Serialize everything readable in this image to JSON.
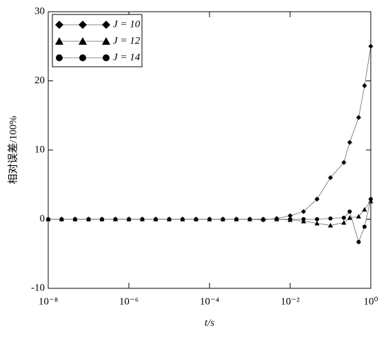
{
  "chart_data": {
    "type": "line",
    "xlabel": "t/s",
    "ylabel": "相对误差/100%",
    "xscale": "log",
    "x": [
      1e-08,
      2.15e-08,
      4.64e-08,
      1e-07,
      2.15e-07,
      4.64e-07,
      1e-06,
      2.15e-06,
      4.64e-06,
      1e-05,
      2.15e-05,
      4.64e-05,
      0.0001,
      0.000215,
      0.000464,
      0.001,
      0.00215,
      0.00464,
      0.01,
      0.0215,
      0.0464,
      0.1,
      0.215,
      0.3,
      0.5,
      0.7,
      1
    ],
    "series": [
      {
        "name": "J = 10",
        "marker": "diamond",
        "color": "#000000",
        "values": [
          0,
          0,
          0,
          0,
          0,
          0,
          0,
          0,
          0,
          0,
          0,
          0,
          0,
          0,
          0,
          0,
          -0.1,
          0.1,
          0.5,
          1.1,
          2.9,
          6.0,
          8.2,
          11.1,
          14.7,
          19.3,
          25
        ]
      },
      {
        "name": "J = 12",
        "marker": "triangle",
        "color": "#000000",
        "values": [
          0,
          0,
          0,
          0,
          0,
          0,
          0,
          0,
          0,
          0,
          0,
          0,
          0,
          0,
          0,
          0,
          0,
          0,
          -0.1,
          -0.3,
          -0.6,
          -0.9,
          -0.5,
          0.2,
          0.4,
          1.4,
          2.6
        ]
      },
      {
        "name": "J = 14",
        "marker": "circle",
        "color": "#000000",
        "values": [
          0,
          0,
          0,
          0,
          0,
          0,
          0,
          0,
          0,
          0,
          0,
          0,
          0,
          0,
          0,
          0,
          0,
          0,
          0,
          0,
          0,
          0.1,
          0.2,
          1.1,
          -3.3,
          -1.1,
          2.9
        ]
      }
    ],
    "xlim": [
      1e-08,
      1
    ],
    "ylim": [
      -10,
      30
    ],
    "xticks": [
      {
        "value": 1e-08,
        "label": "10⁻⁸"
      },
      {
        "value": 1e-06,
        "label": "10⁻⁶"
      },
      {
        "value": 0.0001,
        "label": "10⁻⁴"
      },
      {
        "value": 0.01,
        "label": "10⁻²"
      },
      {
        "value": 1,
        "label": "10⁰"
      }
    ],
    "yticks": [
      -10,
      0,
      10,
      20,
      30
    ],
    "legend": "upper left"
  }
}
